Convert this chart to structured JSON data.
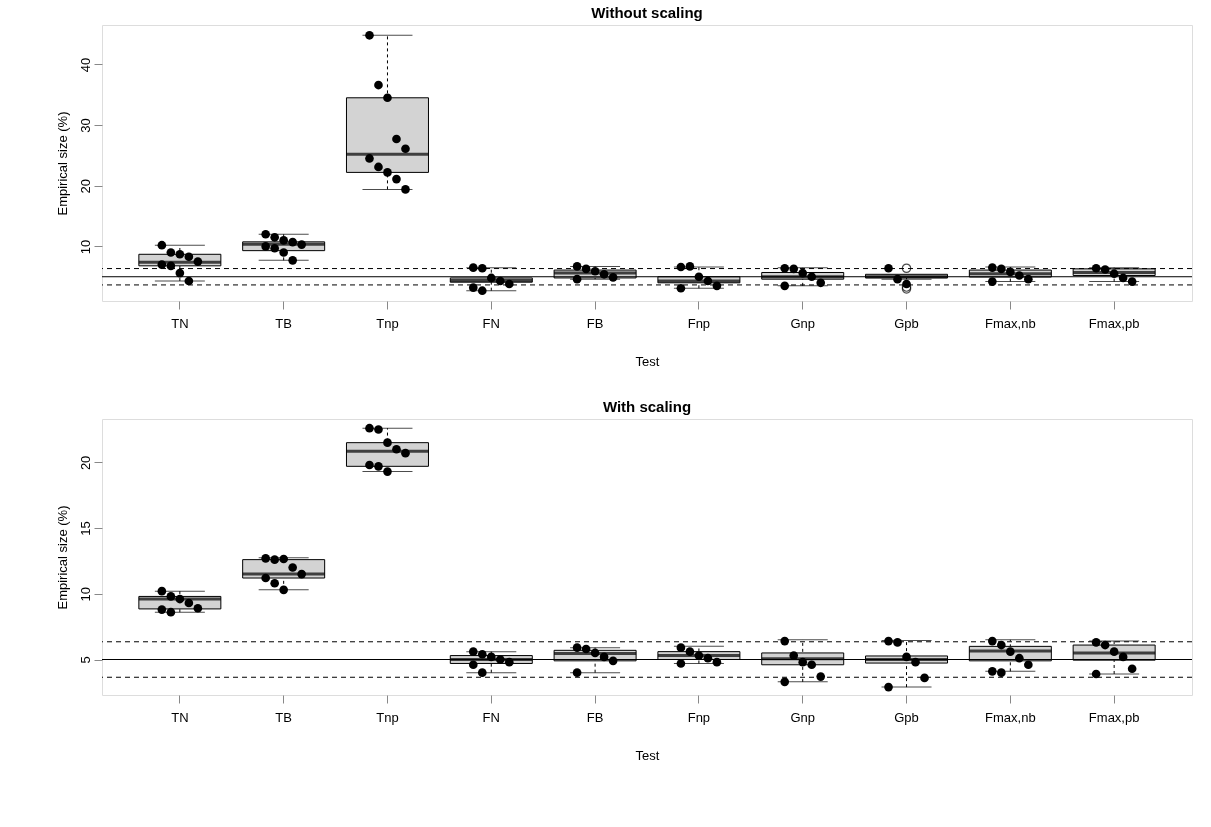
{
  "chart_data": [
    {
      "type": "box",
      "title": "Without scaling",
      "xlabel": "Test",
      "ylabel": "Empirical size (%)",
      "categories": [
        "TN",
        "TB",
        "Tnp",
        "FN",
        "FB",
        "Fnp",
        "Gnp",
        "Gpb",
        "Fmax,nb",
        "Fmax,pb"
      ],
      "boxes": [
        {
          "low": 4.3,
          "q1": 6.8,
          "median": 7.4,
          "q3": 8.7,
          "high": 10.2
        },
        {
          "low": 7.7,
          "q1": 9.3,
          "median": 10.35,
          "q3": 10.75,
          "high": 12.0
        },
        {
          "low": 19.4,
          "q1": 22.2,
          "median": 25.2,
          "q3": 34.5,
          "high": 44.8
        },
        {
          "low": 2.7,
          "q1": 4.1,
          "median": 4.4,
          "q3": 4.8,
          "high": 6.5
        },
        {
          "low": 4.6,
          "q1": 4.8,
          "median": 5.6,
          "q3": 6.1,
          "high": 6.7
        },
        {
          "low": 3.1,
          "q1": 4.0,
          "median": 4.3,
          "q3": 5.0,
          "high": 6.6
        },
        {
          "low": 3.5,
          "q1": 4.6,
          "median": 5.0,
          "q3": 5.7,
          "high": 6.5
        },
        {
          "low": 4.6,
          "q1": 4.8,
          "median": 5.0,
          "q3": 5.4,
          "high": 5.3,
          "outliers": [
            6.4,
            3.0,
            3.3
          ]
        },
        {
          "low": 4.2,
          "q1": 4.95,
          "median": 5.5,
          "q3": 6.1,
          "high": 6.6
        },
        {
          "low": 4.2,
          "q1": 5.2,
          "median": 5.7,
          "q3": 6.3,
          "high": 6.5
        }
      ],
      "series": [
        {
          "type": "scatter",
          "color": "#000000",
          "x": [
            "TN",
            "TN",
            "TN",
            "TN",
            "TN",
            "TN",
            "TN",
            "TN",
            "TN",
            "TB",
            "TB",
            "TB",
            "TB",
            "TB",
            "TB",
            "TB",
            "TB",
            "TB",
            "Tnp",
            "Tnp",
            "Tnp",
            "Tnp",
            "Tnp",
            "Tnp",
            "Tnp",
            "Tnp",
            "Tnp",
            "Tnp",
            "FN",
            "FN",
            "FN",
            "FN",
            "FN",
            "FN",
            "FN",
            "FB",
            "FB",
            "FB",
            "FB",
            "FB",
            "FB",
            "Fnp",
            "Fnp",
            "Fnp",
            "Fnp",
            "Fnp",
            "Fnp",
            "Gnp",
            "Gnp",
            "Gnp",
            "Gnp",
            "Gnp",
            "Gnp",
            "Gpb",
            "Gpb",
            "Gpb",
            "Fmax,nb",
            "Fmax,nb",
            "Fmax,nb",
            "Fmax,nb",
            "Fmax,nb",
            "Fmax,nb",
            "Fmax,pb",
            "Fmax,pb",
            "Fmax,pb",
            "Fmax,pb",
            "Fmax,pb"
          ],
          "values": [
            10.2,
            9.0,
            8.7,
            8.3,
            7.5,
            7.0,
            6.8,
            5.6,
            4.3,
            12.0,
            11.5,
            11.0,
            10.7,
            10.3,
            10.0,
            9.7,
            9.0,
            7.7,
            44.8,
            36.6,
            34.5,
            27.7,
            26.1,
            24.5,
            23.1,
            22.2,
            21.1,
            19.4,
            6.5,
            6.4,
            4.8,
            4.3,
            3.8,
            3.2,
            2.7,
            6.7,
            6.3,
            5.9,
            5.4,
            4.9,
            4.6,
            6.6,
            6.7,
            5.0,
            4.3,
            3.5,
            3.1,
            6.4,
            6.3,
            5.6,
            5.0,
            4.0,
            3.5,
            6.4,
            4.6,
            3.8,
            6.5,
            6.3,
            5.8,
            5.2,
            4.6,
            4.2,
            6.4,
            6.2,
            5.5,
            4.8,
            4.2
          ]
        }
      ],
      "ref_lines": [
        {
          "axis": "y",
          "value": 5,
          "line_style": "solid"
        },
        {
          "axis": "y",
          "value": 6.35,
          "line_style": "dashed"
        },
        {
          "axis": "y",
          "value": 3.65,
          "line_style": "dashed"
        }
      ],
      "ylim": [
        1,
        46.5
      ],
      "yticks": [
        10,
        20,
        30,
        40
      ],
      "grid": false
    },
    {
      "type": "box",
      "title": "With scaling",
      "xlabel": "Test",
      "ylabel": "Empirical size (%)",
      "categories": [
        "TN",
        "TB",
        "Tnp",
        "FN",
        "FB",
        "Fnp",
        "Gnp",
        "Gpb",
        "Fmax,nb",
        "Fmax,pb"
      ],
      "boxes": [
        {
          "low": 8.6,
          "q1": 8.85,
          "median": 9.6,
          "q3": 9.8,
          "high": 10.2
        },
        {
          "low": 10.3,
          "q1": 11.2,
          "median": 11.5,
          "q3": 12.6,
          "high": 12.75
        },
        {
          "low": 19.3,
          "q1": 19.7,
          "median": 20.85,
          "q3": 21.5,
          "high": 22.6
        },
        {
          "low": 4.0,
          "q1": 4.7,
          "median": 5.0,
          "q3": 5.3,
          "high": 5.6
        },
        {
          "low": 4.0,
          "q1": 4.9,
          "median": 5.45,
          "q3": 5.7,
          "high": 5.9
        },
        {
          "low": 4.7,
          "q1": 5.0,
          "median": 5.3,
          "q3": 5.6,
          "high": 6.0
        },
        {
          "low": 3.3,
          "q1": 4.6,
          "median": 5.06,
          "q3": 5.5,
          "high": 6.5
        },
        {
          "low": 2.9,
          "q1": 4.73,
          "median": 5.0,
          "q3": 5.27,
          "high": 6.45
        },
        {
          "low": 4.1,
          "q1": 4.9,
          "median": 5.65,
          "q3": 6.0,
          "high": 6.5
        },
        {
          "low": 3.9,
          "q1": 4.95,
          "median": 5.5,
          "q3": 6.1,
          "high": 6.4
        }
      ],
      "series": [
        {
          "type": "scatter",
          "color": "#000000",
          "x": [
            "TN",
            "TN",
            "TN",
            "TN",
            "TN",
            "TN",
            "TN",
            "TB",
            "TB",
            "TB",
            "TB",
            "TB",
            "TB",
            "TB",
            "TB",
            "Tnp",
            "Tnp",
            "Tnp",
            "Tnp",
            "Tnp",
            "Tnp",
            "Tnp",
            "Tnp",
            "FN",
            "FN",
            "FN",
            "FN",
            "FN",
            "FN",
            "FN",
            "FB",
            "FB",
            "FB",
            "FB",
            "FB",
            "FB",
            "Fnp",
            "Fnp",
            "Fnp",
            "Fnp",
            "Fnp",
            "Fnp",
            "Gnp",
            "Gnp",
            "Gnp",
            "Gnp",
            "Gnp",
            "Gnp",
            "Gpb",
            "Gpb",
            "Gpb",
            "Gpb",
            "Gpb",
            "Gpb",
            "Fmax,nb",
            "Fmax,nb",
            "Fmax,nb",
            "Fmax,nb",
            "Fmax,nb",
            "Fmax,nb",
            "Fmax,nb",
            "Fmax,pb",
            "Fmax,pb",
            "Fmax,pb",
            "Fmax,pb",
            "Fmax,pb",
            "Fmax,pb"
          ],
          "values": [
            10.2,
            9.8,
            9.6,
            9.3,
            8.9,
            8.8,
            8.6,
            12.7,
            12.6,
            12.65,
            12.0,
            11.5,
            11.2,
            10.8,
            10.3,
            22.6,
            22.5,
            21.5,
            21.0,
            20.7,
            19.8,
            19.7,
            19.3,
            5.6,
            5.4,
            5.2,
            5.0,
            4.8,
            4.6,
            4.0,
            5.9,
            5.8,
            5.5,
            5.2,
            4.9,
            4.0,
            5.9,
            5.6,
            5.3,
            5.1,
            4.8,
            4.7,
            6.4,
            5.3,
            4.8,
            4.6,
            3.7,
            3.3,
            6.4,
            6.3,
            5.2,
            4.8,
            3.6,
            2.9,
            6.4,
            6.1,
            5.6,
            5.1,
            4.6,
            4.1,
            4.0,
            6.3,
            6.1,
            5.6,
            5.2,
            4.3,
            3.9
          ]
        }
      ],
      "ref_lines": [
        {
          "axis": "y",
          "value": 5,
          "line_style": "solid"
        },
        {
          "axis": "y",
          "value": 6.35,
          "line_style": "dashed"
        },
        {
          "axis": "y",
          "value": 3.65,
          "line_style": "dashed"
        }
      ],
      "ylim": [
        2.3,
        23.3
      ],
      "yticks": [
        5,
        10,
        15,
        20
      ],
      "grid": false
    }
  ]
}
